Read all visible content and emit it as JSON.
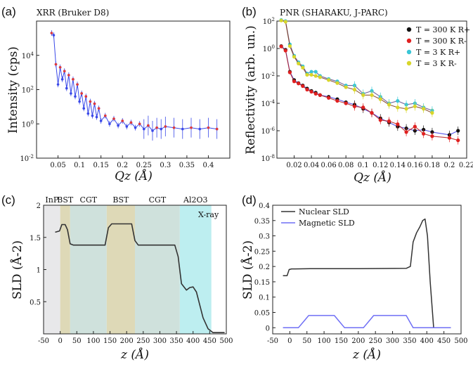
{
  "figure": {
    "panel_labels": [
      "(a)",
      "(b)",
      "(c)",
      "(d)"
    ]
  },
  "chart_data": [
    {
      "panel": "(a)",
      "type": "scatter",
      "title": "XRR (Bruker D8)",
      "xlabel": "Qz (Å)",
      "ylabel": "Intensity (cps)",
      "xlim": [
        0,
        0.45
      ],
      "ylim": [
        0.01,
        1000000
      ],
      "yscale": "log",
      "xticks": [
        "0.05",
        "0.1",
        "0.15",
        "0.2",
        "0.25",
        "0.3",
        "0.35",
        "0.4"
      ],
      "yticks": [
        "10-2",
        "100",
        "102",
        "104"
      ],
      "series": [
        {
          "color": "#3a49e8",
          "x": [
            0.035,
            0.04,
            0.045,
            0.05,
            0.055,
            0.06,
            0.065,
            0.07,
            0.075,
            0.08,
            0.085,
            0.09,
            0.095,
            0.1,
            0.105,
            0.11,
            0.115,
            0.12,
            0.125,
            0.13,
            0.135,
            0.14,
            0.145,
            0.15,
            0.16,
            0.17,
            0.18,
            0.19,
            0.2,
            0.21,
            0.22,
            0.23,
            0.24,
            0.25,
            0.26,
            0.27,
            0.28,
            0.29,
            0.3,
            0.32,
            0.34,
            0.36,
            0.38,
            0.4,
            0.42
          ],
          "y": [
            200000,
            150000,
            3000,
            200,
            2000,
            400,
            1200,
            120,
            700,
            60,
            400,
            40,
            200,
            20,
            60,
            8,
            40,
            4,
            20,
            3,
            15,
            2.5,
            8,
            1.5,
            3,
            1,
            2,
            0.8,
            1.5,
            0.7,
            1.2,
            0.6,
            1,
            0.5,
            0.8,
            0.4,
            0.6,
            0.5,
            0.7,
            0.6,
            0.5,
            0.6,
            0.5,
            0.6,
            0.5
          ]
        },
        {
          "color": "#e23a3a",
          "x": [
            0.035,
            0.045,
            0.055,
            0.065,
            0.075,
            0.085,
            0.095,
            0.105,
            0.115,
            0.125,
            0.135,
            0.145,
            0.16,
            0.18,
            0.2,
            0.22,
            0.24,
            0.26,
            0.28,
            0.3,
            0.32,
            0.36,
            0.4,
            0.42
          ],
          "y": [
            200000,
            3000,
            2000,
            1200,
            700,
            400,
            200,
            60,
            40,
            20,
            15,
            8,
            3,
            2,
            1.5,
            1.2,
            1,
            0.8,
            0.6,
            0.7,
            0.6,
            0.6,
            0.6,
            0.5
          ]
        }
      ]
    },
    {
      "panel": "(b)",
      "type": "scatter",
      "title": "PNR (SHARAKU, J-PARC)",
      "xlabel": "Qz (Å)",
      "ylabel": "Reflectivity (arb. un.)",
      "xlim": [
        0,
        0.22
      ],
      "ylim": [
        1e-08,
        100
      ],
      "yscale": "log",
      "xticks": [
        "0.02",
        "0.04",
        "0.06",
        "0.08",
        "0.1",
        "0.12",
        "0.14",
        "0.16",
        "0.18",
        "0.2",
        "0.22"
      ],
      "yticks": [
        "10-8",
        "10-6",
        "10-4",
        "10-2",
        "100",
        "102"
      ],
      "legend_position": "top-right",
      "series": [
        {
          "name": "T = 300 K R+",
          "color": "#111111",
          "x": [
            0.005,
            0.01,
            0.015,
            0.02,
            0.025,
            0.03,
            0.035,
            0.04,
            0.045,
            0.05,
            0.06,
            0.07,
            0.08,
            0.09,
            0.1,
            0.11,
            0.12,
            0.13,
            0.14,
            0.15,
            0.16,
            0.17,
            0.18,
            0.2,
            0.21
          ],
          "y": [
            1.5,
            0.8,
            0.02,
            0.005,
            0.003,
            0.002,
            0.0012,
            0.0008,
            0.0006,
            0.0004,
            0.0003,
            0.0002,
            0.00012,
            8e-05,
            4e-05,
            2e-05,
            8e-06,
            4e-06,
            2e-06,
            1.5e-06,
            1e-06,
            1.2e-06,
            8e-07,
            5e-07,
            1e-06
          ]
        },
        {
          "name": "T = 300 K R-",
          "color": "#e02020",
          "x": [
            0.005,
            0.01,
            0.015,
            0.02,
            0.025,
            0.03,
            0.035,
            0.04,
            0.045,
            0.05,
            0.06,
            0.07,
            0.08,
            0.09,
            0.1,
            0.11,
            0.12,
            0.13,
            0.14,
            0.15,
            0.16,
            0.17,
            0.18,
            0.2,
            0.21
          ],
          "y": [
            1.4,
            0.7,
            0.018,
            0.004,
            0.0028,
            0.0018,
            0.001,
            0.0007,
            0.0005,
            0.0004,
            0.00025,
            0.00015,
            0.0001,
            6e-05,
            5e-05,
            2e-05,
            6e-06,
            5e-06,
            3e-06,
            8e-07,
            2e-06,
            6e-07,
            4e-07,
            3e-07,
            2e-07
          ]
        },
        {
          "name": "T = 3 K R+",
          "color": "#39c6d6",
          "x": [
            0.005,
            0.01,
            0.015,
            0.02,
            0.025,
            0.03,
            0.035,
            0.04,
            0.045,
            0.05,
            0.06,
            0.07,
            0.08,
            0.09,
            0.1,
            0.11,
            0.12,
            0.13,
            0.14,
            0.15,
            0.16,
            0.17,
            0.18
          ],
          "y": [
            120,
            100,
            2,
            0.3,
            0.1,
            0.05,
            0.015,
            0.02,
            0.02,
            0.01,
            0.006,
            0.004,
            0.002,
            0.002,
            0.0005,
            0.0008,
            0.0003,
            0.0001,
            0.00015,
            8e-05,
            0.0001,
            5e-05,
            3e-05
          ]
        },
        {
          "name": "T = 3 K R-",
          "color": "#d8d62a",
          "x": [
            0.005,
            0.01,
            0.015,
            0.02,
            0.025,
            0.03,
            0.035,
            0.04,
            0.045,
            0.05,
            0.06,
            0.07,
            0.08,
            0.09,
            0.1,
            0.11,
            0.12,
            0.13,
            0.14,
            0.15,
            0.16,
            0.17,
            0.18
          ],
          "y": [
            110,
            90,
            1.5,
            0.25,
            0.08,
            0.04,
            0.012,
            0.012,
            0.01,
            0.008,
            0.005,
            0.003,
            0.0015,
            0.001,
            0.0004,
            0.0004,
            0.0002,
            8e-05,
            5e-05,
            4e-05,
            6e-05,
            4e-05,
            2e-05
          ]
        }
      ]
    },
    {
      "panel": "(c)",
      "type": "line",
      "title": "",
      "xlabel": "z (Å)",
      "ylabel": "SLD (Å-2)",
      "xlim": [
        -50,
        500
      ],
      "ylim": [
        0,
        2
      ],
      "xticks": [
        "-50",
        "0",
        "50",
        "100",
        "150",
        "200",
        "250",
        "300",
        "350",
        "400",
        "450",
        "500"
      ],
      "yticks": [
        "0.5",
        "1",
        "1.5",
        "2"
      ],
      "regions": [
        {
          "label": "InP",
          "from": -50,
          "to": 0,
          "color": "#e8e8ea"
        },
        {
          "label": "BST",
          "from": 0,
          "to": 30,
          "color": "#ded9b7"
        },
        {
          "label": "CGT",
          "from": 30,
          "to": 140,
          "color": "#cfe1dc"
        },
        {
          "label": "BST",
          "from": 140,
          "to": 225,
          "color": "#ded9b7"
        },
        {
          "label": "CGT",
          "from": 225,
          "to": 360,
          "color": "#cfe1dc"
        },
        {
          "label": "Al2O3",
          "from": 360,
          "to": 455,
          "color": "#bdeef0"
        }
      ],
      "annotation": "X-ray",
      "series": [
        {
          "color": "#333333",
          "x": [
            -15,
            -2,
            5,
            15,
            22,
            30,
            40,
            135,
            145,
            155,
            215,
            225,
            235,
            345,
            355,
            365,
            380,
            390,
            400,
            410,
            420,
            430,
            445,
            460,
            475,
            495
          ],
          "y": [
            1.58,
            1.6,
            1.7,
            1.7,
            1.62,
            1.4,
            1.38,
            1.38,
            1.65,
            1.71,
            1.71,
            1.45,
            1.38,
            1.38,
            1.2,
            0.78,
            0.68,
            0.72,
            0.73,
            0.65,
            0.45,
            0.25,
            0.08,
            0.02,
            0.02,
            0.02
          ]
        }
      ]
    },
    {
      "panel": "(d)",
      "type": "line",
      "title": "",
      "xlabel": "z (Å)",
      "ylabel": "SLD (Å-2)",
      "xlim": [
        -50,
        500
      ],
      "ylim": [
        -0.02,
        0.4
      ],
      "xticks": [
        "-50",
        "0",
        "50",
        "100",
        "150",
        "200",
        "250",
        "300",
        "350",
        "400",
        "450",
        "500"
      ],
      "yticks": [
        "0",
        "0.05",
        "0.1",
        "0.15",
        "0.2",
        "0.25",
        "0.3",
        "0.35",
        "0.4"
      ],
      "legend_position": "top-left",
      "series": [
        {
          "name": "Nuclear SLD",
          "color": "#333333",
          "x": [
            -20,
            -8,
            -2,
            5,
            15,
            60,
            200,
            340,
            352,
            360,
            370,
            380,
            388,
            395,
            402,
            410,
            420,
            430,
            470
          ],
          "y": [
            0.17,
            0.17,
            0.19,
            0.192,
            0.192,
            0.193,
            0.193,
            0.194,
            0.2,
            0.28,
            0.31,
            0.33,
            0.35,
            0.355,
            0.3,
            0.15,
            0.0,
            0.0,
            0.0
          ]
        },
        {
          "name": "Magnetic SLD",
          "color": "#6f6ff5",
          "x": [
            -20,
            25,
            40,
            55,
            130,
            145,
            160,
            215,
            230,
            245,
            340,
            350,
            360,
            405,
            470
          ],
          "y": [
            0,
            0,
            0.02,
            0.04,
            0.04,
            0.02,
            0,
            0,
            0.02,
            0.04,
            0.04,
            0.02,
            0,
            0,
            0
          ]
        }
      ]
    }
  ]
}
